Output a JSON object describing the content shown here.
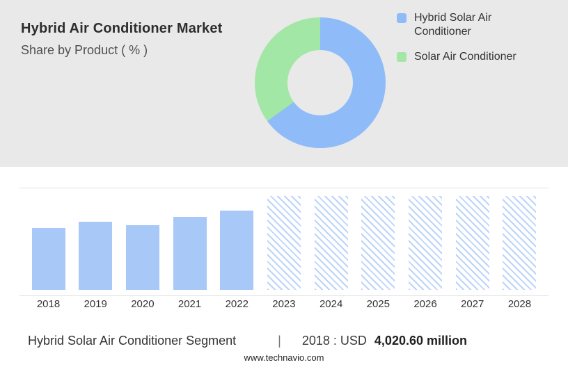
{
  "header": {
    "title": "Hybrid Air Conditioner Market",
    "subtitle": "Share by Product ( % )"
  },
  "colors": {
    "background_top": "#E9E9E9",
    "blue": "#8FBCF8",
    "green": "#A3E7A6",
    "bar_blue": "#A8C8F8",
    "hatch_blue": "#BCD4FA",
    "grid": "#E3E3E3",
    "text_dark": "#2D2D2D"
  },
  "legend": [
    {
      "label": "Hybrid Solar Air Conditioner",
      "color": "#8FBCF8"
    },
    {
      "label": "Solar Air Conditioner",
      "color": "#A3E7A6"
    }
  ],
  "chart_data": [
    {
      "type": "pie",
      "donut": true,
      "title": "Share by Product ( % )",
      "labels": [
        "Hybrid Solar Air Conditioner",
        "Solar Air Conditioner"
      ],
      "values": [
        65,
        35
      ],
      "colors": [
        "#8FBCF8",
        "#A3E7A6"
      ],
      "legend_position": "right"
    },
    {
      "type": "bar",
      "title": "Hybrid Solar Air Conditioner Segment (USD million)",
      "categories": [
        "2018",
        "2019",
        "2020",
        "2021",
        "2022",
        "2023",
        "2024",
        "2025",
        "2026",
        "2027",
        "2028"
      ],
      "values": [
        4020.6,
        4430,
        4200,
        4740,
        5150,
        null,
        null,
        null,
        null,
        null,
        null
      ],
      "forecast_years": [
        "2023",
        "2024",
        "2025",
        "2026",
        "2027",
        "2028"
      ],
      "forecast_placeholder_value": 6100,
      "unit": "USD million",
      "ylabel": "",
      "xlabel": "",
      "y_axis_ticks_hidden": true,
      "grid": "single-top-line",
      "anchor_value_shown": "2018 : USD 4,020.60 million"
    }
  ],
  "caption": {
    "segment": "Hybrid Solar Air Conditioner Segment",
    "separator": "|",
    "year_label": "2018 : USD",
    "value": "4,020.60 million"
  },
  "footer": {
    "website": "www.technavio.com"
  }
}
